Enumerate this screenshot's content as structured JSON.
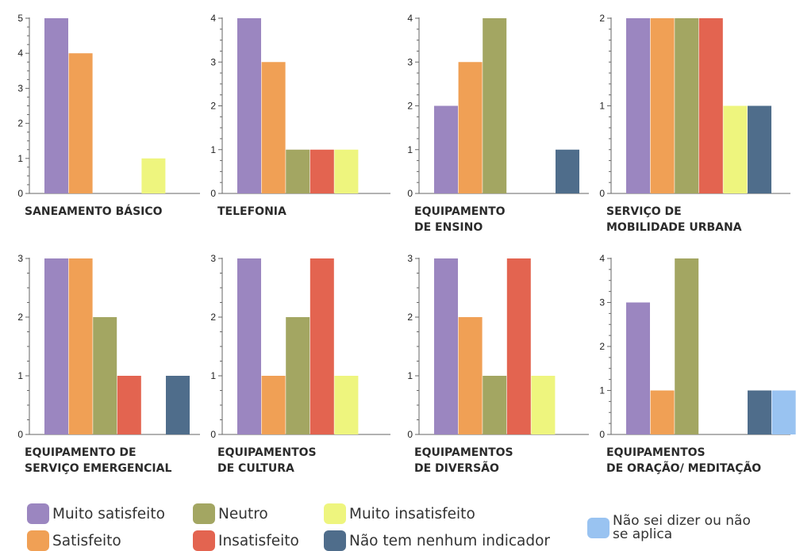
{
  "colors": {
    "muito_satisfeito": "#9b86c0",
    "satisfeito": "#f0a055",
    "neutro": "#a3a662",
    "insatisfeito": "#e36450",
    "muito_insatisfeito": "#eef57e",
    "nenhum_indicador": "#4f6d8b",
    "nao_sei": "#99c3f1"
  },
  "legend": [
    {
      "key": "muito_satisfeito",
      "label": "Muito satisfeito"
    },
    {
      "key": "satisfeito",
      "label": "Satisfeito"
    },
    {
      "key": "neutro",
      "label": "Neutro"
    },
    {
      "key": "insatisfeito",
      "label": "Insatisfeito"
    },
    {
      "key": "muito_insatisfeito",
      "label": "Muito insatisfeito"
    },
    {
      "key": "nenhum_indicador",
      "label": "Não tem nenhum indicador"
    },
    {
      "key": "nao_sei",
      "label": "Não sei dizer ou não se aplica"
    }
  ],
  "chart_data": [
    {
      "type": "bar",
      "title": "SANEAMENTO BÁSICO",
      "y_ticks": [
        0,
        1,
        2,
        3,
        4,
        5
      ],
      "ylim": [
        0,
        5
      ],
      "bars": [
        {
          "series": "muito_satisfeito",
          "value": 5
        },
        {
          "series": "satisfeito",
          "value": 4
        },
        {
          "series": "muito_insatisfeito",
          "value": 1
        }
      ]
    },
    {
      "type": "bar",
      "title": "TELEFONIA",
      "y_ticks": [
        0,
        1,
        2,
        3,
        4
      ],
      "ylim": [
        0,
        4
      ],
      "bars": [
        {
          "series": "muito_satisfeito",
          "value": 4
        },
        {
          "series": "satisfeito",
          "value": 3
        },
        {
          "series": "neutro",
          "value": 1
        },
        {
          "series": "insatisfeito",
          "value": 1
        },
        {
          "series": "muito_insatisfeito",
          "value": 1
        }
      ]
    },
    {
      "type": "bar",
      "title": "EQUIPAMENTO DE ENSINO",
      "title_lines": [
        "EQUIPAMENTO",
        "DE ENSINO"
      ],
      "y_ticks": [
        0,
        1,
        2,
        3,
        4
      ],
      "ylim": [
        0,
        4
      ],
      "bars": [
        {
          "series": "muito_satisfeito",
          "value": 2
        },
        {
          "series": "satisfeito",
          "value": 3
        },
        {
          "series": "neutro",
          "value": 4
        },
        {
          "series": "nenhum_indicador",
          "value": 1
        }
      ]
    },
    {
      "type": "bar",
      "title": "SERVIÇO DE MOBILIDADE URBANA",
      "title_lines": [
        "SERVIÇO DE",
        "MOBILIDADE URBANA"
      ],
      "y_ticks": [
        0,
        1,
        2
      ],
      "ylim": [
        0,
        2
      ],
      "bars": [
        {
          "series": "muito_satisfeito",
          "value": 2
        },
        {
          "series": "satisfeito",
          "value": 2
        },
        {
          "series": "neutro",
          "value": 2
        },
        {
          "series": "insatisfeito",
          "value": 2
        },
        {
          "series": "muito_insatisfeito",
          "value": 1
        },
        {
          "series": "nenhum_indicador",
          "value": 1
        }
      ]
    },
    {
      "type": "bar",
      "title": "EQUIPAMENTO DE SERVIÇO EMERGENCIAL",
      "title_lines": [
        "EQUIPAMENTO DE",
        "SERVIÇO EMERGENCIAL"
      ],
      "y_ticks": [
        0,
        1,
        2,
        3
      ],
      "ylim": [
        0,
        3
      ],
      "bars": [
        {
          "series": "muito_satisfeito",
          "value": 3
        },
        {
          "series": "satisfeito",
          "value": 3
        },
        {
          "series": "neutro",
          "value": 2
        },
        {
          "series": "insatisfeito",
          "value": 1
        },
        {
          "series": "nenhum_indicador",
          "value": 1
        }
      ]
    },
    {
      "type": "bar",
      "title": "EQUIPAMENTOS DE CULTURA",
      "title_lines": [
        "EQUIPAMENTOS",
        "DE CULTURA"
      ],
      "y_ticks": [
        0,
        1,
        2,
        3
      ],
      "ylim": [
        0,
        3
      ],
      "bars": [
        {
          "series": "muito_satisfeito",
          "value": 3
        },
        {
          "series": "satisfeito",
          "value": 1
        },
        {
          "series": "neutro",
          "value": 2
        },
        {
          "series": "insatisfeito",
          "value": 3
        },
        {
          "series": "muito_insatisfeito",
          "value": 1
        }
      ]
    },
    {
      "type": "bar",
      "title": "EQUIPAMENTOS DE DIVERSÃO",
      "title_lines": [
        "EQUIPAMENTOS",
        "DE DIVERSÃO"
      ],
      "y_ticks": [
        0,
        1,
        2,
        3
      ],
      "ylim": [
        0,
        3
      ],
      "bars": [
        {
          "series": "muito_satisfeito",
          "value": 3
        },
        {
          "series": "satisfeito",
          "value": 2
        },
        {
          "series": "neutro",
          "value": 1
        },
        {
          "series": "insatisfeito",
          "value": 3
        },
        {
          "series": "muito_insatisfeito",
          "value": 1
        }
      ]
    },
    {
      "type": "bar",
      "title": "EQUIPAMENTOS DE ORAÇÃO/ MEDITAÇÃO",
      "title_lines": [
        "EQUIPAMENTOS",
        "DE ORAÇÃO/ MEDITAÇÃO"
      ],
      "y_ticks": [
        0,
        1,
        2,
        3,
        4
      ],
      "ylim": [
        0,
        4
      ],
      "bars": [
        {
          "series": "muito_satisfeito",
          "value": 3
        },
        {
          "series": "satisfeito",
          "value": 1
        },
        {
          "series": "neutro",
          "value": 4
        },
        {
          "series": "nenhum_indicador",
          "value": 1
        },
        {
          "series": "nao_sei",
          "value": 1
        }
      ]
    }
  ]
}
